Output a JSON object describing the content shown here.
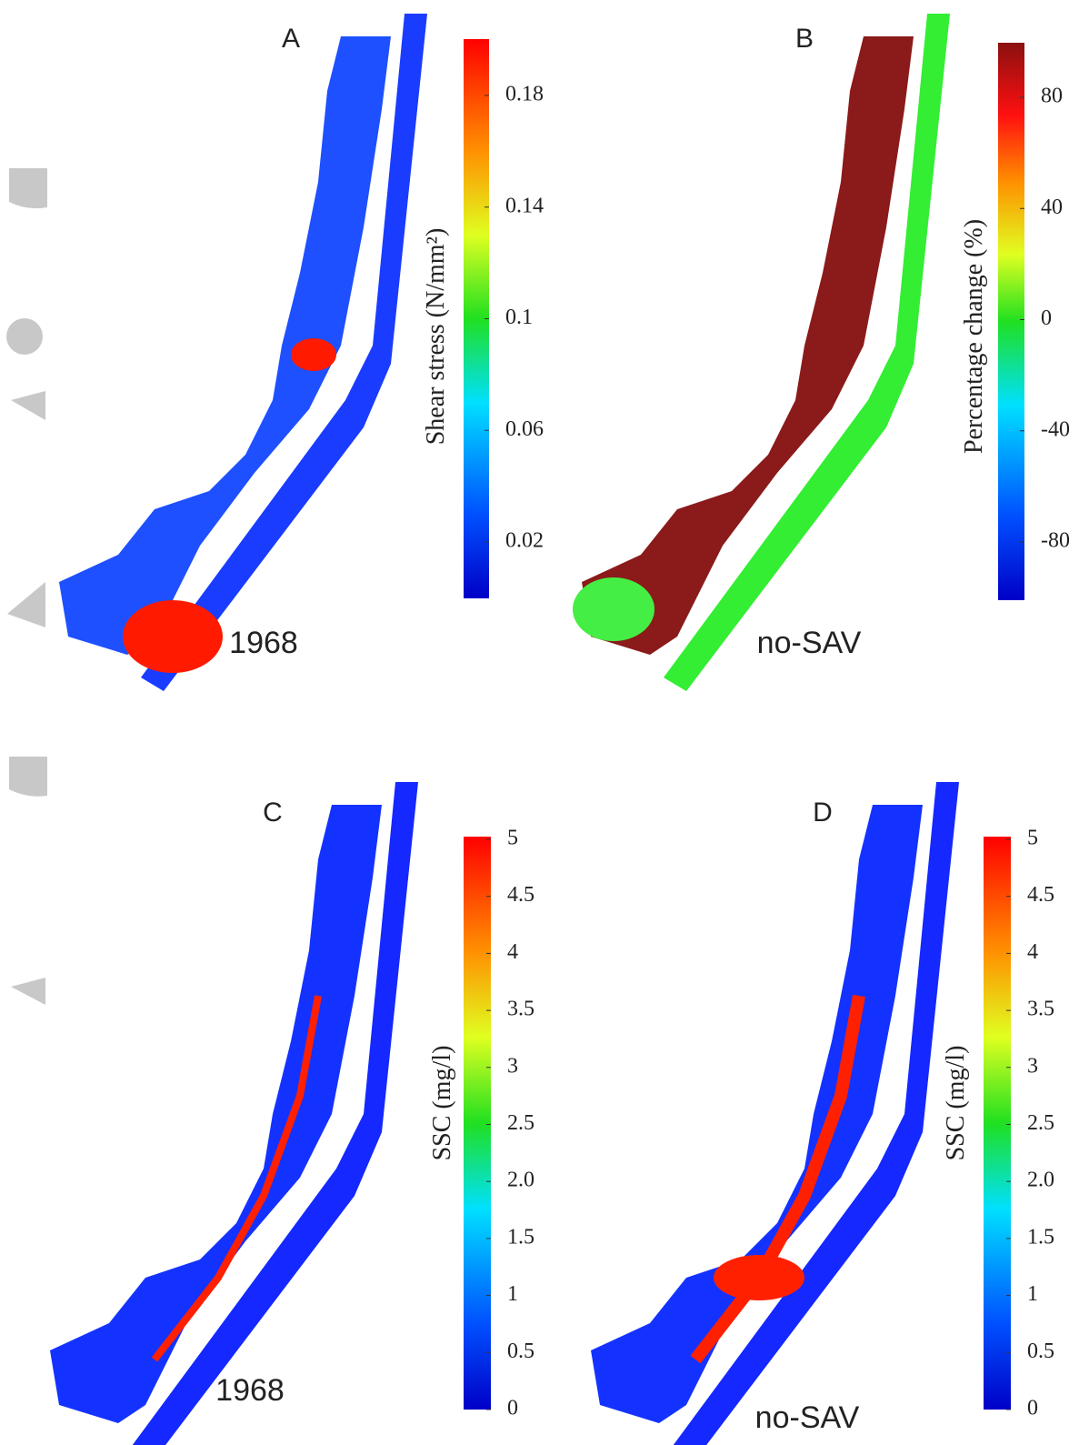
{
  "panels": [
    {
      "label": "A",
      "caption": "1968",
      "colorbar": {
        "title": "Shear stress (N/mm²)",
        "ticks": [
          "0.18",
          "0.14",
          "0.1",
          "0.06",
          "0.02"
        ]
      }
    },
    {
      "label": "B",
      "caption": "no-SAV",
      "colorbar": {
        "title": "Percentage change (%)",
        "ticks": [
          "80",
          "40",
          "0",
          "-40",
          "-80"
        ]
      }
    },
    {
      "label": "C",
      "caption": "1968",
      "colorbar": {
        "title": "SSC (mg/l)",
        "ticks": [
          "5",
          "4.5",
          "4",
          "3.5",
          "3",
          "2.5",
          "2.0",
          "1.5",
          "1",
          "0.5",
          "0"
        ]
      }
    },
    {
      "label": "D",
      "caption": "no-SAV",
      "colorbar": {
        "title": "SSC (mg/l)",
        "ticks": [
          "5",
          "4.5",
          "4",
          "3.5",
          "3",
          "2.5",
          "2.0",
          "1.5",
          "1",
          "0.5",
          "0"
        ]
      }
    }
  ]
}
